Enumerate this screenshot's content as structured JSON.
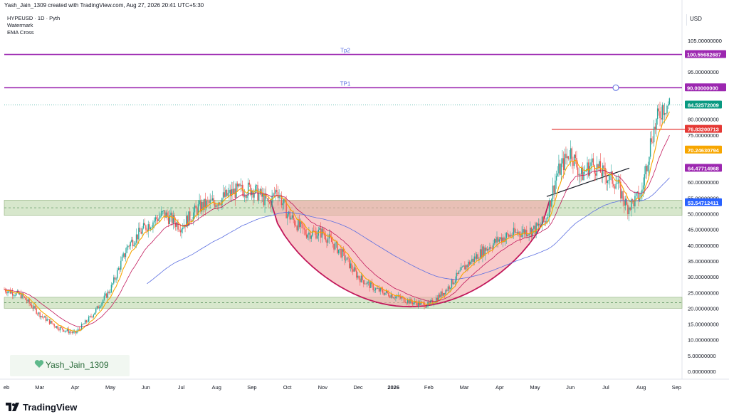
{
  "header": {
    "credit": "Yash_Jain_1309 created with TradingView.com, Aug 27, 2026 20:41 UTC+5:30"
  },
  "legend": {
    "symbol": "HYPEUSD · 1D · Pyth",
    "line2": "Watermark",
    "line3": "EMA Cross"
  },
  "currency_button": "USD",
  "watermark": {
    "text": "Yash_Jain_1309"
  },
  "logo": {
    "text": "TradingView"
  },
  "colors": {
    "up": "#26a69a",
    "down": "#ef5350",
    "ema_fast": "#f7a600",
    "ema_mid": "#c2185b",
    "ema_slow": "#5b6ee1",
    "target_line": "#9c27b0",
    "zone_fill": "#b7d4a3",
    "cup_fill": "#f3a6a6",
    "resistance": "#e53935",
    "last_price_bg": "#089981"
  },
  "chart_data": {
    "type": "line",
    "title": "",
    "xlabel": "",
    "ylabel": "",
    "ylim": [
      -2,
      108
    ],
    "y_ticks": [
      "105.00000000",
      "95.00000000",
      "90.00000000",
      "80.00000000",
      "75.00000000",
      "70.00000000",
      "65.00000000",
      "60.00000000",
      "55.00000000",
      "50.00000000",
      "45.00000000",
      "40.00000000",
      "35.00000000",
      "30.00000000",
      "25.00000000",
      "20.00000000",
      "15.00000000",
      "10.00000000",
      "5.00000000",
      "0.00000000"
    ],
    "y_tick_values": [
      105,
      95,
      90,
      80,
      75,
      70,
      65,
      60,
      55,
      50,
      45,
      40,
      35,
      30,
      25,
      20,
      15,
      10,
      5,
      0
    ],
    "x_ticks": [
      "eb",
      "Mar",
      "Apr",
      "May",
      "Jun",
      "Jul",
      "Aug",
      "Sep",
      "Oct",
      "Nov",
      "Dec",
      "2026",
      "Feb",
      "Mar",
      "Apr",
      "May",
      "Jun",
      "Jul",
      "Aug",
      "Sep"
    ],
    "x_tick_months": [
      0.5,
      1,
      2,
      3,
      4,
      5,
      6,
      7,
      8,
      9,
      10,
      11,
      12,
      13,
      14,
      15,
      16,
      17,
      18,
      19
    ],
    "price_months": [
      0,
      0.5,
      1,
      1.5,
      2,
      2.5,
      3,
      3.5,
      4,
      4.5,
      5,
      5.5,
      6,
      6.5,
      7,
      7.5,
      7.7,
      8,
      8.5,
      9,
      9.5,
      10,
      10.5,
      11,
      11.5,
      12,
      12.5,
      13,
      13.5,
      14,
      14.5,
      15,
      15.3,
      15.6,
      16,
      16.3,
      16.6,
      17,
      17.3,
      17.6,
      18,
      18.3,
      18.6,
      18.8
    ],
    "price_values": [
      26,
      24,
      18,
      14,
      12,
      18,
      26,
      40,
      46,
      50,
      46,
      52,
      54,
      57,
      58,
      53,
      58,
      50,
      44,
      44,
      38,
      30,
      26,
      24,
      22,
      21,
      26,
      33,
      38,
      42,
      44,
      45,
      48,
      62,
      70,
      62,
      66,
      62,
      60,
      52,
      56,
      75,
      84,
      85
    ],
    "series": [
      {
        "name": "",
        "values": []
      }
    ],
    "horizontal_levels": [
      {
        "label": "Tp2",
        "value": 100.55682687,
        "tag": "100.55682687"
      },
      {
        "label": "TP1",
        "value": 90.0,
        "tag": "90.00000000"
      }
    ],
    "price_tags": [
      {
        "value": 84.52572009,
        "text": "84.52572009",
        "color": "#089981"
      },
      {
        "value": 76.83200713,
        "text": "76.83200713",
        "color": "#e53935"
      },
      {
        "value": 70.24630794,
        "text": "70.24630794",
        "color": "#f7a600"
      },
      {
        "value": 64.47714968,
        "text": "64.47714968",
        "color": "#9c27b0"
      },
      {
        "value": 53.54712411,
        "text": "53.54712411",
        "color": "#2962ff"
      }
    ],
    "zones": [
      {
        "from": 49.5,
        "to": 54.3
      },
      {
        "from": 20.0,
        "to": 23.5
      }
    ],
    "resistance_level": 76.83200713,
    "grid": true,
    "legend": "top-left"
  }
}
